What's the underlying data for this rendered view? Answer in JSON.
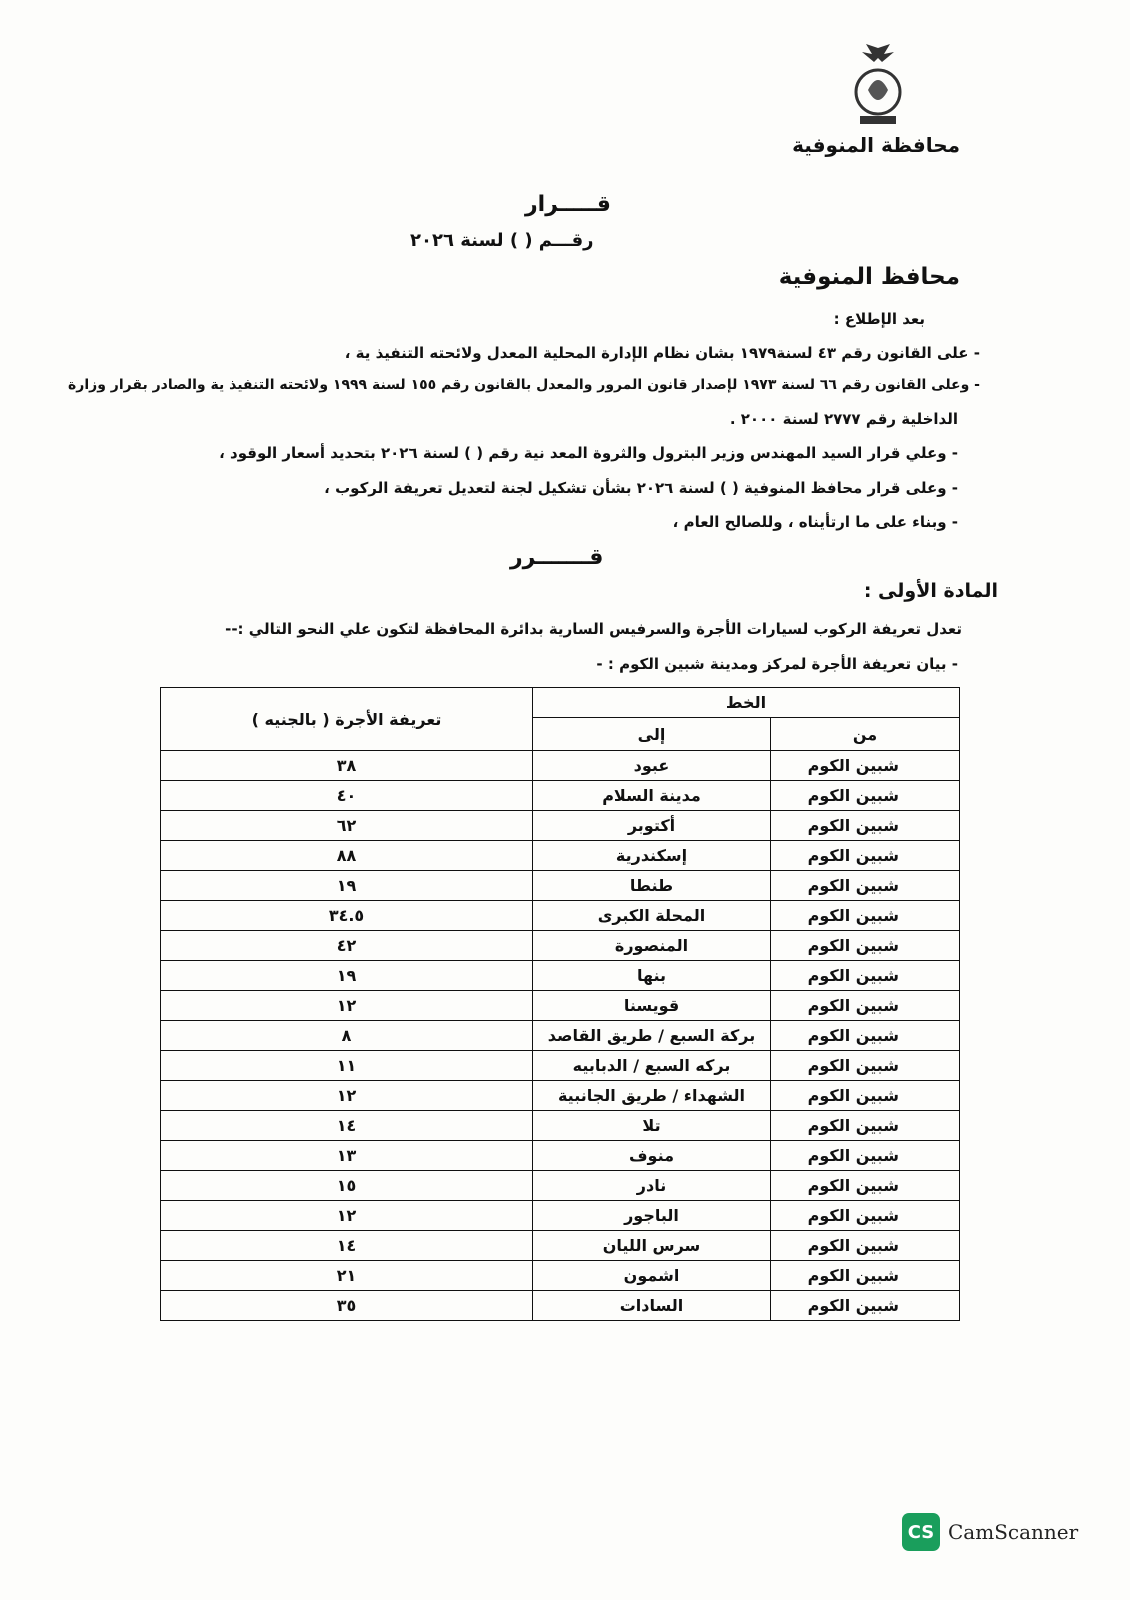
{
  "header": {
    "governorate": "محافظة المنوفية",
    "decision_title": "قـــــرار",
    "number_line": "رقـــم (          ) لسنة ٢٠٢٦",
    "issuer": "محافظ المنوفية",
    "after_review": "بعد الإطلاع :"
  },
  "preamble": [
    "- على القانون رقم ٤٣ لسنة١٩٧٩ بشان نظام الإدارة المحلية المعدل ولائحته التنفيذ ية ،",
    "- وعلى القانون رقم ٦٦ لسنة ١٩٧٣ لإصدار قانون المرور والمعدل بالقانون رقم ١٥٥ لسنة ١٩٩٩ ولائحته التنفيذ ية والصادر بقرار وزارة",
    "الداخلية رقم ٢٧٧٧ لسنة ٢٠٠٠ .",
    "- وعلي قرار السيد المهندس وزير البترول والثروة المعد نية رقم (        ) لسنة ٢٠٢٦ بتحديد أسعار الوقود ،",
    "- وعلى قرار محافظ المنوفية (        ) لسنة ٢٠٢٦ بشأن تشكيل لجنة لتعديل  تعريفة الركوب ،",
    "- وبناء على ما ارتأيناه ، وللصالح العام ،"
  ],
  "decided": "قـــــــرر",
  "article_one": "المادة الأولى :",
  "article_text": "تعدل تعريفة الركوب لسيارات الأجرة والسرفيس السارية بدائرة المحافظة لتكون علي النحو التالي :--",
  "table_intro": "- بيان تعريفة الأجرة لمركز ومدينة شبين الكوم : -",
  "table": {
    "headers": {
      "line": "الخط",
      "from": "من",
      "to": "إلى",
      "fare": "تعريفة الأجرة ( بالجنيه )"
    },
    "rows": [
      {
        "from": "شبين الكوم",
        "to": "عبود",
        "fare": "٣٨"
      },
      {
        "from": "شبين الكوم",
        "to": "مدينة السلام",
        "fare": "٤٠"
      },
      {
        "from": "شبين الكوم",
        "to": "أكتوبر",
        "fare": "٦٢"
      },
      {
        "from": "شبين الكوم",
        "to": "إسكندرية",
        "fare": "٨٨"
      },
      {
        "from": "شبين الكوم",
        "to": "طنطا",
        "fare": "١٩"
      },
      {
        "from": "شبين الكوم",
        "to": "المحلة الكبرى",
        "fare": "٣٤.٥"
      },
      {
        "from": "شبين الكوم",
        "to": "المنصورة",
        "fare": "٤٢"
      },
      {
        "from": "شبين الكوم",
        "to": "بنها",
        "fare": "١٩"
      },
      {
        "from": "شبين الكوم",
        "to": "قويسنا",
        "fare": "١٢"
      },
      {
        "from": "شبين الكوم",
        "to": "بركة السبع / طريق القاصد",
        "fare": "٨"
      },
      {
        "from": "شبين الكوم",
        "to": "بركه السبع / الدبابيه",
        "fare": "١١"
      },
      {
        "from": "شبين الكوم",
        "to": "الشهداء / طريق الجانبية",
        "fare": "١٢"
      },
      {
        "from": "شبين الكوم",
        "to": "تلا",
        "fare": "١٤"
      },
      {
        "from": "شبين الكوم",
        "to": "منوف",
        "fare": "١٣"
      },
      {
        "from": "شبين الكوم",
        "to": "نادر",
        "fare": "١٥"
      },
      {
        "from": "شبين الكوم",
        "to": "الباجور",
        "fare": "١٢"
      },
      {
        "from": "شبين الكوم",
        "to": "سرس الليان",
        "fare": "١٤"
      },
      {
        "from": "شبين الكوم",
        "to": "اشمون",
        "fare": "٢١"
      },
      {
        "from": "شبين الكوم",
        "to": "السادات",
        "fare": "٣٥"
      }
    ]
  },
  "watermark": {
    "badge": "CS",
    "text": "CamScanner",
    "color": "#1a9e5c"
  }
}
